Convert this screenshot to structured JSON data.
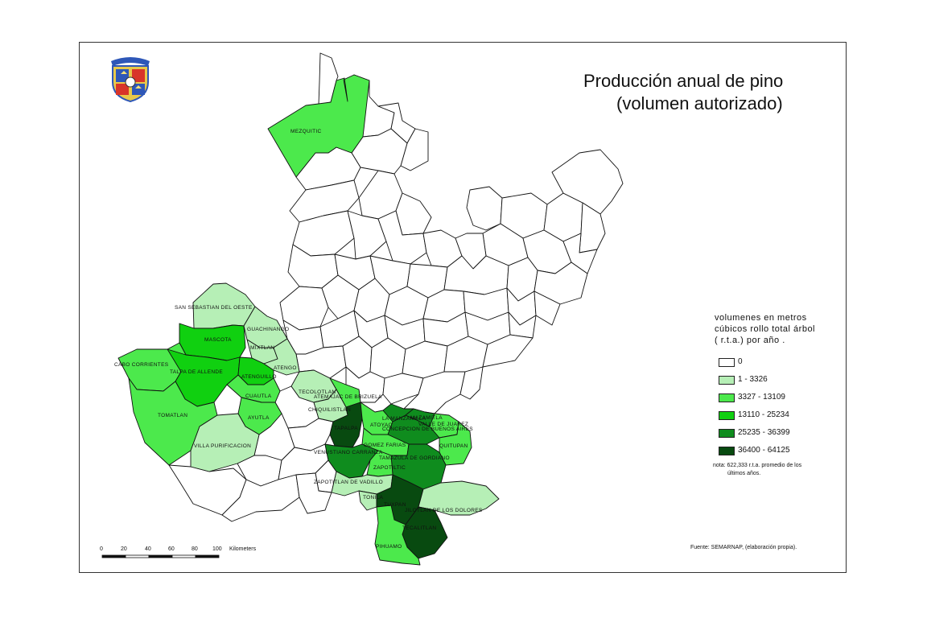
{
  "map": {
    "title_line1": "Producción anual de pino",
    "title_line2": "(volumen autorizado)"
  },
  "legend": {
    "heading": [
      "volumenes en metros",
      "cúbicos rollo total árbol",
      "( r.t.a.)  por año ."
    ],
    "classes": [
      {
        "label": "0",
        "color": "#ffffff"
      },
      {
        "label": "1 - 3326",
        "color": "#b6efb6"
      },
      {
        "label": "3327 - 13109",
        "color": "#4ce94c"
      },
      {
        "label": "13110 - 25234",
        "color": "#10d010"
      },
      {
        "label": "25235 - 36399",
        "color": "#0f8c1e"
      },
      {
        "label": "36400 - 64125",
        "color": "#084a10"
      }
    ],
    "note_line1": "nota: 622,333 r.t.a. promedio de los",
    "note_line2": "últimos  años."
  },
  "source": "Fuente: SEMARNAP, (elaboración propia).",
  "scale": {
    "ticks": [
      "0",
      "20",
      "40",
      "60",
      "80",
      "100"
    ],
    "unit": "Kilometers"
  },
  "municipalities": [
    {
      "name": "MEZQUITIC",
      "class": 2
    },
    {
      "name": "SAN SEBASTIAN DEL OESTE",
      "class": 1
    },
    {
      "name": "MASCOTA",
      "class": 3
    },
    {
      "name": "GUACHINANGO",
      "class": 1
    },
    {
      "name": "MIXTLAN",
      "class": 1
    },
    {
      "name": "CABO CORRIENTES",
      "class": 2
    },
    {
      "name": "TALPA DE ALLENDE",
      "class": 3
    },
    {
      "name": "ATENGUILLO",
      "class": 3
    },
    {
      "name": "ATENGO",
      "class": 1
    },
    {
      "name": "CUAUTLA",
      "class": 2
    },
    {
      "name": "TOMATLAN",
      "class": 2
    },
    {
      "name": "AYUTLA",
      "class": 2
    },
    {
      "name": "VILLA PURIFICACION",
      "class": 1
    },
    {
      "name": "TECOLOTLAN",
      "class": 1
    },
    {
      "name": "ATEMAJAC DE BRIZUELA",
      "class": 2
    },
    {
      "name": "CHIQUILISTLAN",
      "class": 1
    },
    {
      "name": "TAPALPA",
      "class": 5
    },
    {
      "name": "ATOYAC",
      "class": 2
    },
    {
      "name": "CONCEPCION DE BUENOS AIRES",
      "class": 4
    },
    {
      "name": "LA MANZANILLA",
      "class": 4
    },
    {
      "name": "MAZAMITLA",
      "class": 4
    },
    {
      "name": "VALLE DE JUAREZ",
      "class": 2
    },
    {
      "name": "QUITUPAN",
      "class": 2
    },
    {
      "name": "GOMEZ FARIAS",
      "class": 2
    },
    {
      "name": "VENUSTIANO CARRANZA",
      "class": 4
    },
    {
      "name": "TAMAZULA DE GORDIANO",
      "class": 4
    },
    {
      "name": "ZAPOTILTIC",
      "class": 2
    },
    {
      "name": "ZAPOTITLAN DE VADILLO",
      "class": 1
    },
    {
      "name": "TONILA",
      "class": 1
    },
    {
      "name": "TUXPAN",
      "class": 5
    },
    {
      "name": "JILOTLAN DE LOS DOLORES",
      "class": 1
    },
    {
      "name": "TECALITLAN",
      "class": 5
    },
    {
      "name": "PIHUAMO",
      "class": 2
    }
  ]
}
